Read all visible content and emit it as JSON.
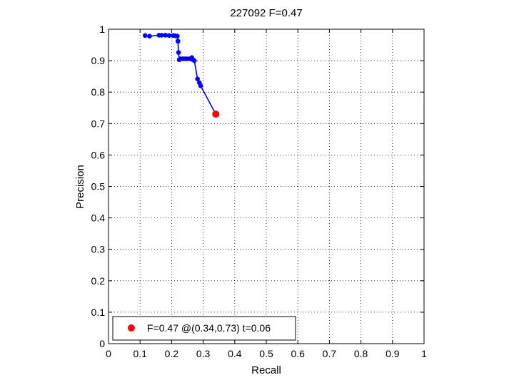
{
  "chart_data": {
    "type": "line",
    "title": "227092 F=0.47",
    "xlabel": "Recall",
    "ylabel": "Precision",
    "xlim": [
      0,
      1
    ],
    "ylim": [
      0,
      1
    ],
    "xticks": [
      "0",
      "0.1",
      "0.2",
      "0.3",
      "0.4",
      "0.5",
      "0.6",
      "0.7",
      "0.8",
      "0.9",
      "1"
    ],
    "yticks": [
      "0",
      "0.1",
      "0.2",
      "0.3",
      "0.4",
      "0.5",
      "0.6",
      "0.7",
      "0.8",
      "0.9",
      "1"
    ],
    "grid": true,
    "series": [
      {
        "color": "#0000ff",
        "marker": "circle",
        "points": [
          [
            0.116,
            0.98
          ],
          [
            0.13,
            0.978
          ],
          [
            0.16,
            0.981
          ],
          [
            0.168,
            0.981
          ],
          [
            0.18,
            0.981
          ],
          [
            0.192,
            0.98
          ],
          [
            0.205,
            0.98
          ],
          [
            0.212,
            0.979
          ],
          [
            0.218,
            0.978
          ],
          [
            0.22,
            0.962
          ],
          [
            0.222,
            0.926
          ],
          [
            0.224,
            0.903
          ],
          [
            0.228,
            0.906
          ],
          [
            0.236,
            0.906
          ],
          [
            0.244,
            0.906
          ],
          [
            0.252,
            0.906
          ],
          [
            0.26,
            0.906
          ],
          [
            0.264,
            0.91
          ],
          [
            0.268,
            0.903
          ],
          [
            0.272,
            0.9
          ],
          [
            0.282,
            0.842
          ],
          [
            0.288,
            0.83
          ],
          [
            0.292,
            0.82
          ],
          [
            0.34,
            0.73
          ]
        ]
      }
    ],
    "best_point": {
      "x": 0.34,
      "y": 0.73,
      "color": "#ff0000"
    },
    "legend": {
      "placement": "bottom-left",
      "entries": [
        {
          "label": "F=0.47 @(0.34,0.73) t=0.06",
          "color": "#ff0000"
        }
      ]
    }
  }
}
